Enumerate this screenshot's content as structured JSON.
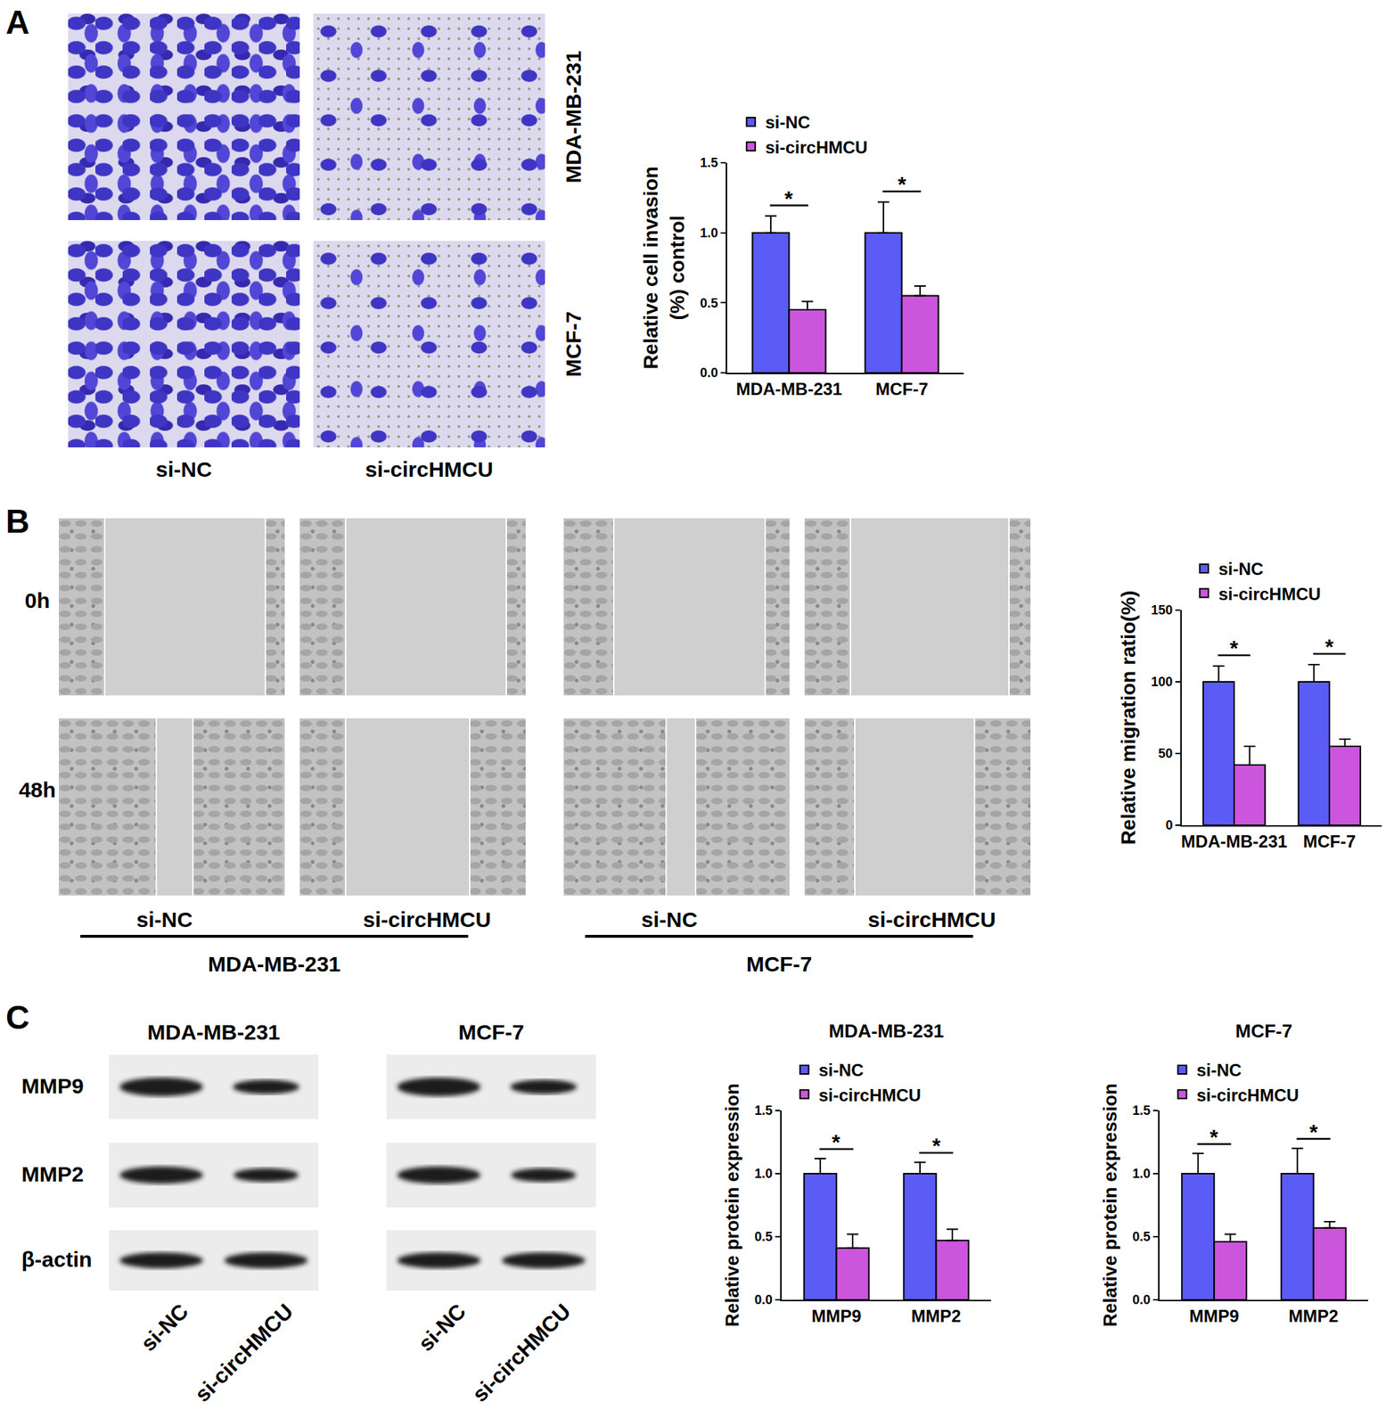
{
  "chart_data": [
    {
      "type": "bar",
      "categories": [
        "MDA-MB-231",
        "MCF-7"
      ],
      "series": [
        {
          "name": "si-NC",
          "color": "#5b5bf5",
          "values": [
            1.0,
            1.0
          ],
          "errors": [
            0.12,
            0.22
          ]
        },
        {
          "name": "si-circHMCU",
          "color": "#cc55dd",
          "values": [
            0.45,
            0.55
          ],
          "errors": [
            0.06,
            0.07
          ]
        }
      ],
      "y_label": "Relative cell invasion\n(%) control",
      "ylim": [
        0,
        1.5
      ],
      "yticks": [
        {
          "value": 0,
          "label": "0.0"
        },
        0.5,
        {
          "value": 1,
          "label": "1.0"
        },
        1.5
      ],
      "annotations": [
        "*",
        "*"
      ],
      "legend": "top left"
    },
    {
      "type": "bar",
      "categories": [
        "MDA-MB-231",
        "MCF-7"
      ],
      "series": [
        {
          "name": "si-NC",
          "color": "#5b5bf5",
          "values": [
            100,
            100
          ],
          "errors": [
            11,
            12
          ]
        },
        {
          "name": "si-circHMCU",
          "color": "#cc55dd",
          "values": [
            42,
            55
          ],
          "errors": [
            13,
            5
          ]
        }
      ],
      "y_label": "Relative migration ratio(%)",
      "ylim": [
        0,
        150
      ],
      "yticks": [
        0,
        50,
        100,
        150
      ],
      "annotations": [
        "*",
        "*"
      ],
      "legend": "top left"
    },
    {
      "type": "bar",
      "title": "MDA-MB-231",
      "categories": [
        "MMP9",
        "MMP2"
      ],
      "series": [
        {
          "name": "si-NC",
          "color": "#5b5bf5",
          "values": [
            1.0,
            1.0
          ],
          "errors": [
            0.12,
            0.09
          ]
        },
        {
          "name": "si-circHMCU",
          "color": "#cc55dd",
          "values": [
            0.41,
            0.47
          ],
          "errors": [
            0.11,
            0.09
          ]
        }
      ],
      "y_label": "Relative protein expression",
      "ylim": [
        0,
        1.5
      ],
      "yticks": [
        {
          "value": 0,
          "label": "0.0"
        },
        0.5,
        {
          "value": 1,
          "label": "1.0"
        },
        1.5
      ],
      "annotations": [
        "*",
        "*"
      ],
      "legend": "top left"
    },
    {
      "type": "bar",
      "title": "MCF-7",
      "categories": [
        "MMP9",
        "MMP2"
      ],
      "series": [
        {
          "name": "si-NC",
          "color": "#5b5bf5",
          "values": [
            1.0,
            1.0
          ],
          "errors": [
            0.16,
            0.2
          ]
        },
        {
          "name": "si-circHMCU",
          "color": "#cc55dd",
          "values": [
            0.46,
            0.57
          ],
          "errors": [
            0.06,
            0.05
          ]
        }
      ],
      "y_label": "Relative protein expression",
      "ylim": [
        0,
        1.5
      ],
      "yticks": [
        {
          "value": 0,
          "label": "0.0"
        },
        0.5,
        {
          "value": 1,
          "label": "1.0"
        },
        1.5
      ],
      "annotations": [
        "*",
        "*"
      ],
      "legend": "top left"
    }
  ],
  "image_panels": {
    "A": {
      "label": "A",
      "columns": [
        "si-NC",
        "si-circHMCU"
      ],
      "rows": [
        "MDA-MB-231",
        "MCF-7"
      ]
    },
    "B": {
      "label": "B",
      "rows": [
        "0h",
        "48h"
      ],
      "groups": [
        {
          "name": "MDA-MB-231",
          "columns": [
            "si-NC",
            "si-circHMCU"
          ]
        },
        {
          "name": "MCF-7",
          "columns": [
            "si-NC",
            "si-circHMCU"
          ]
        }
      ]
    },
    "C": {
      "label": "C",
      "proteins": [
        "MMP9",
        "MMP2",
        "β-actin"
      ],
      "groups": [
        {
          "name": "MDA-MB-231",
          "lanes": [
            "si-NC",
            "si-circHMCU"
          ]
        },
        {
          "name": "MCF-7",
          "lanes": [
            "si-NC",
            "si-circHMCU"
          ]
        }
      ]
    }
  }
}
